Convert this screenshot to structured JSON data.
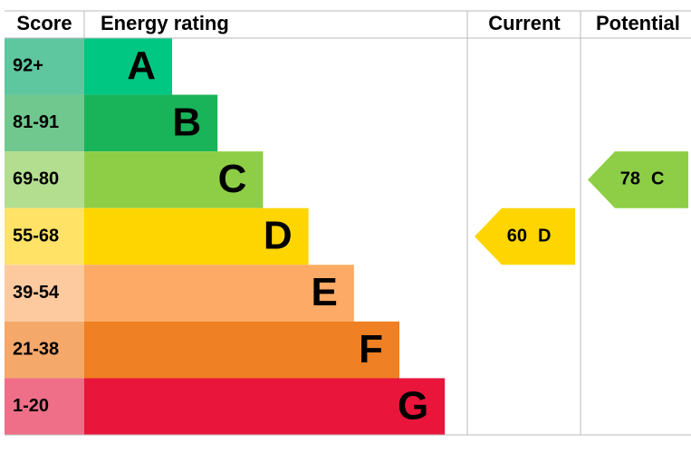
{
  "chart_data": {
    "type": "epc",
    "headers": {
      "score": "Score",
      "rating": "Energy rating",
      "current": "Current",
      "potential": "Potential"
    },
    "bands": [
      {
        "score": "92+",
        "letter": "A",
        "color": "#00c781",
        "score_color": "#5fc7a0"
      },
      {
        "score": "81-91",
        "letter": "B",
        "color": "#19b459",
        "score_color": "#70c88e"
      },
      {
        "score": "69-80",
        "letter": "C",
        "color": "#8dce46",
        "score_color": "#b4de8f"
      },
      {
        "score": "55-68",
        "letter": "D",
        "color": "#ffd500",
        "score_color": "#ffe266"
      },
      {
        "score": "39-54",
        "letter": "E",
        "color": "#fcaa65",
        "score_color": "#fdc99e"
      },
      {
        "score": "21-38",
        "letter": "F",
        "color": "#ef8023",
        "score_color": "#f4a86a"
      },
      {
        "score": "1-20",
        "letter": "G",
        "color": "#e9153b",
        "score_color": "#ef6f88"
      }
    ],
    "current": {
      "value": 60,
      "rating": "D"
    },
    "potential": {
      "value": 78,
      "rating": "C"
    }
  }
}
